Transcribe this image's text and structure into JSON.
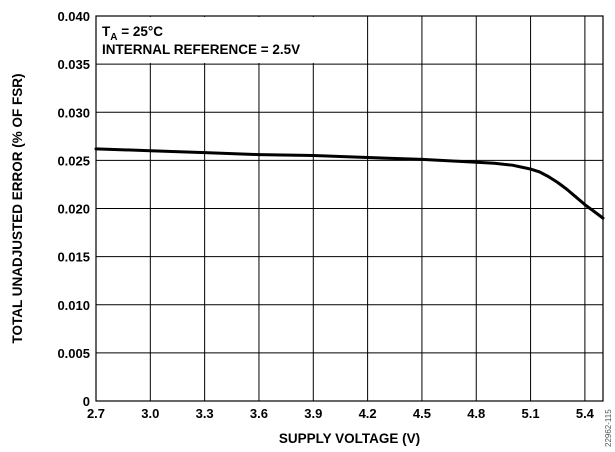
{
  "chart_data": {
    "type": "line",
    "title": "",
    "xlabel": "SUPPLY VOLTAGE (V)",
    "ylabel": "TOTAL UNADJUSTED ERROR (% OF FSR)",
    "xlim": [
      2.7,
      5.5
    ],
    "ylim": [
      0,
      0.04
    ],
    "x_ticks": [
      "2.7",
      "3.0",
      "3.3",
      "3.6",
      "3.9",
      "4.2",
      "4.5",
      "4.8",
      "5.1",
      "5.4"
    ],
    "y_ticks": [
      "0",
      "0.005",
      "0.010",
      "0.015",
      "0.020",
      "0.025",
      "0.030",
      "0.035",
      "0.040"
    ],
    "grid": true,
    "annotations": {
      "condition_prefix": "T",
      "condition_subscript": "A",
      "condition_value": " = 25°C",
      "reference": "INTERNAL REFERENCE = 2.5V"
    },
    "figure_id": "22962-115",
    "series": [
      {
        "color": "#000000",
        "x": [
          2.7,
          3.0,
          3.3,
          3.6,
          3.9,
          4.2,
          4.5,
          4.8,
          4.9,
          5.0,
          5.05,
          5.1,
          5.15,
          5.2,
          5.25,
          5.3,
          5.35,
          5.4,
          5.45,
          5.5
        ],
        "y": [
          0.0262,
          0.026,
          0.0258,
          0.0256,
          0.0255,
          0.0253,
          0.0251,
          0.0248,
          0.0247,
          0.0245,
          0.0243,
          0.0241,
          0.0238,
          0.0233,
          0.0227,
          0.022,
          0.0212,
          0.0204,
          0.0197,
          0.019
        ]
      }
    ]
  }
}
